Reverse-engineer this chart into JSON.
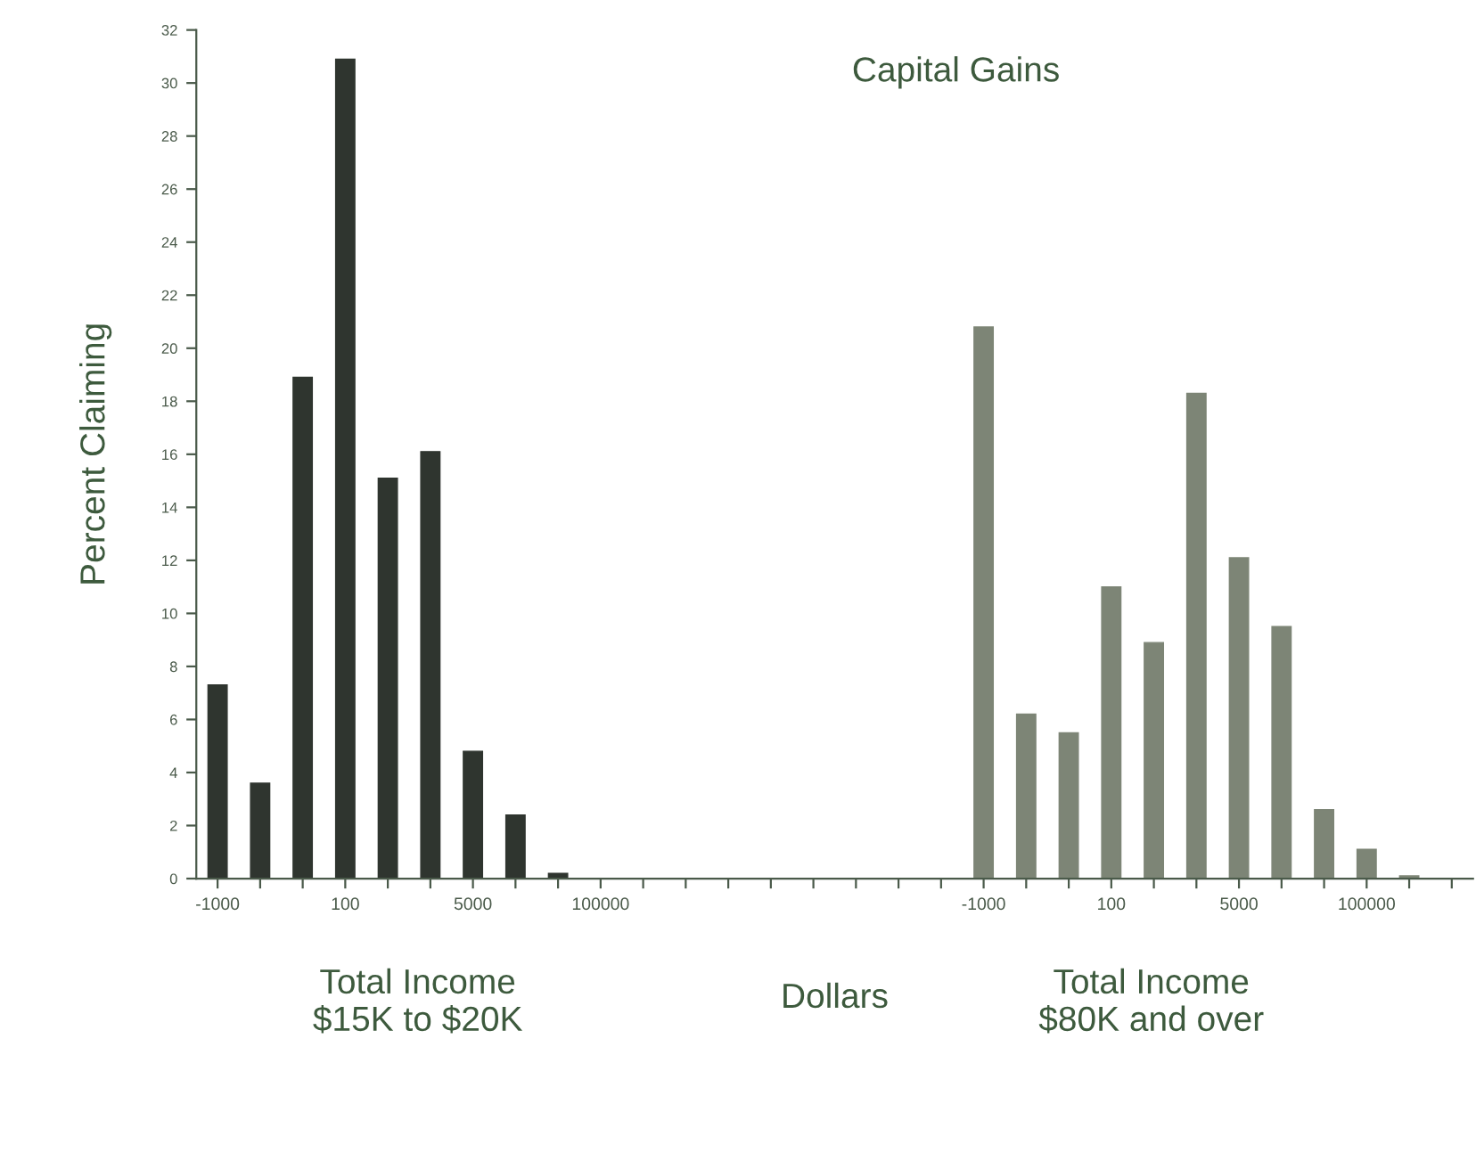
{
  "chart_data": {
    "type": "bar",
    "title": "Capital Gains",
    "xlabel": "Dollars",
    "ylabel": "Percent Claiming",
    "categories": [
      "-1000",
      null,
      null,
      "100",
      null,
      null,
      "5000",
      null,
      null,
      "100000",
      null,
      null,
      null,
      null,
      null,
      null,
      null,
      null,
      "-1000",
      null,
      null,
      "100",
      null,
      null,
      "5000",
      null,
      null,
      "100000",
      null,
      null
    ],
    "series": [
      {
        "color": "#2f352f",
        "values": [
          7.3,
          3.6,
          18.9,
          30.9,
          15.1,
          16.1,
          4.8,
          2.4,
          0.2,
          0,
          0,
          null,
          null,
          null,
          null,
          null,
          null,
          null,
          null,
          null,
          null,
          null,
          null,
          null,
          null,
          null,
          null,
          null,
          null,
          null
        ]
      },
      {
        "color": "#7d8576",
        "values": [
          null,
          null,
          null,
          null,
          null,
          null,
          null,
          null,
          null,
          null,
          null,
          null,
          null,
          null,
          null,
          null,
          null,
          null,
          20.8,
          6.2,
          5.5,
          11.0,
          8.9,
          18.3,
          12.1,
          9.5,
          2.6,
          1.1,
          0.1,
          null
        ]
      }
    ],
    "ylim": [
      0,
      32
    ],
    "yticks": [
      0,
      2,
      4,
      6,
      8,
      10,
      12,
      14,
      16,
      18,
      20,
      22,
      24,
      26,
      28,
      30,
      32
    ],
    "annotations": [
      "Total Income\n$15K to $20K",
      "Total Income\n$80K and over"
    ]
  }
}
